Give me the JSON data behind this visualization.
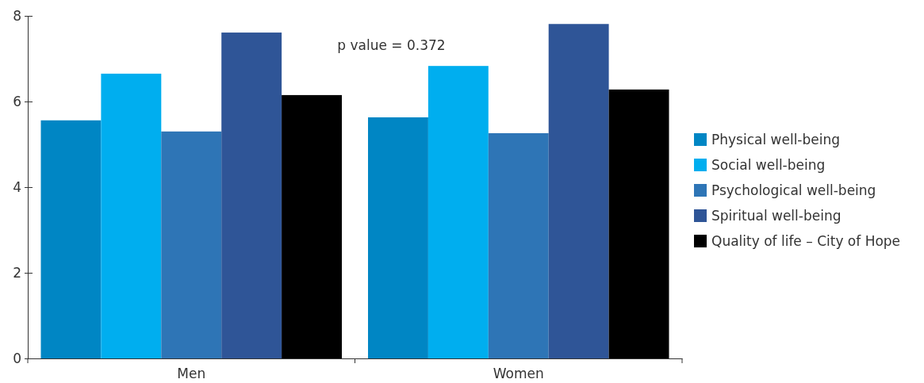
{
  "chart_data": {
    "type": "bar",
    "categories": [
      "Men",
      "Women"
    ],
    "series": [
      {
        "name": "Physical well-being",
        "color": "#0086c4",
        "values": [
          5.56,
          5.63
        ]
      },
      {
        "name": "Social well-being",
        "color": "#00aeef",
        "values": [
          6.65,
          6.83
        ]
      },
      {
        "name": "Psychological well-being",
        "color": "#2e75b6",
        "values": [
          5.3,
          5.26
        ]
      },
      {
        "name": "Spiritual well-being",
        "color": "#2f5597",
        "values": [
          7.61,
          7.81
        ]
      },
      {
        "name": "Quality of life – City of Hope",
        "color": "#000000",
        "values": [
          6.15,
          6.28
        ]
      }
    ],
    "ylim": [
      0,
      8
    ],
    "yticks": [
      0,
      2,
      4,
      6,
      8
    ],
    "grid": false,
    "legend": "right",
    "annotations": [
      "p value = 0.372"
    ]
  }
}
